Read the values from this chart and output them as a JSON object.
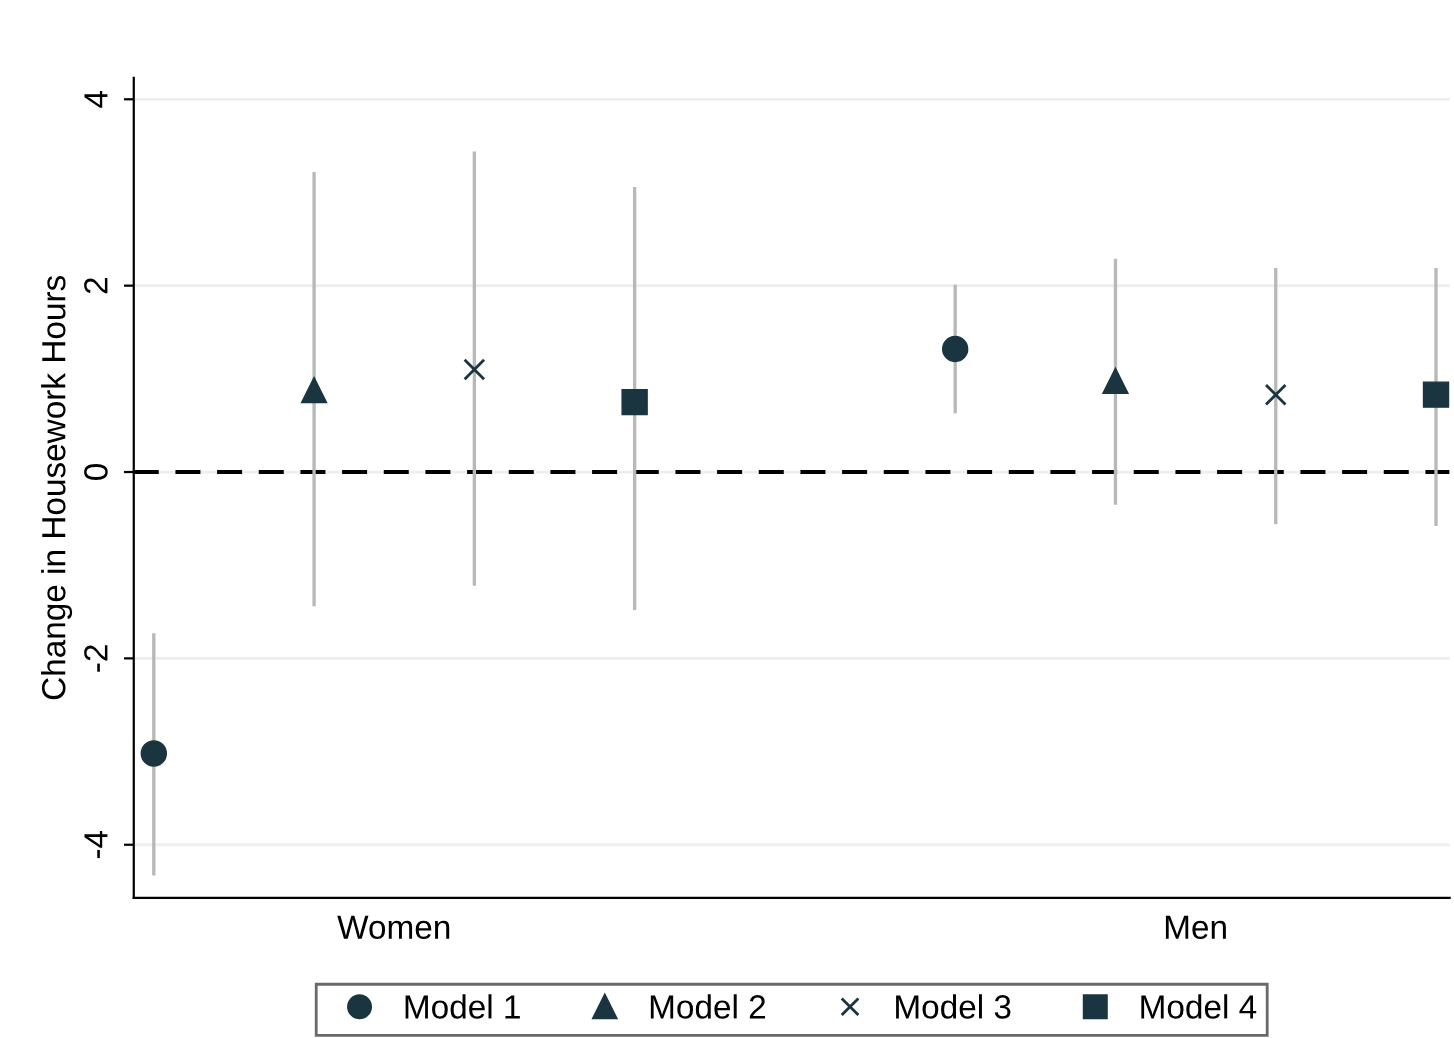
{
  "chart_data": {
    "type": "scatter",
    "ylabel": "Change in Housework Hours",
    "categories": [
      "Women",
      "Men"
    ],
    "ylim": [
      -4.57,
      4.23
    ],
    "yticks": [
      -4,
      -2,
      0,
      2,
      4
    ],
    "grid": "y",
    "legend": "bottom",
    "ref_lines": [
      {
        "axis": "y",
        "value": 0,
        "color": "#000000",
        "line_style": "dashed"
      }
    ],
    "series": [
      {
        "name": "Model 1",
        "color": "#1a3440",
        "marker": "circle",
        "values": [
          -3.02,
          1.32
        ],
        "errors": [
          [
            -4.33,
            -1.73
          ],
          [
            0.63,
            2.01
          ]
        ]
      },
      {
        "name": "Model 2",
        "color": "#1a3440",
        "marker": "triangle",
        "values": [
          0.88,
          0.98
        ],
        "errors": [
          [
            -1.44,
            3.22
          ],
          [
            -0.35,
            2.29
          ]
        ]
      },
      {
        "name": "Model 3",
        "color": "#1a3440",
        "marker": "cross",
        "values": [
          1.1,
          0.83
        ],
        "errors": [
          [
            -1.22,
            3.44
          ],
          [
            -0.56,
            2.19
          ]
        ]
      },
      {
        "name": "Model 4",
        "color": "#1a3440",
        "marker": "square",
        "values": [
          0.75,
          0.83
        ],
        "errors": [
          [
            -1.48,
            3.06
          ],
          [
            -0.58,
            2.19
          ]
        ]
      }
    ]
  }
}
